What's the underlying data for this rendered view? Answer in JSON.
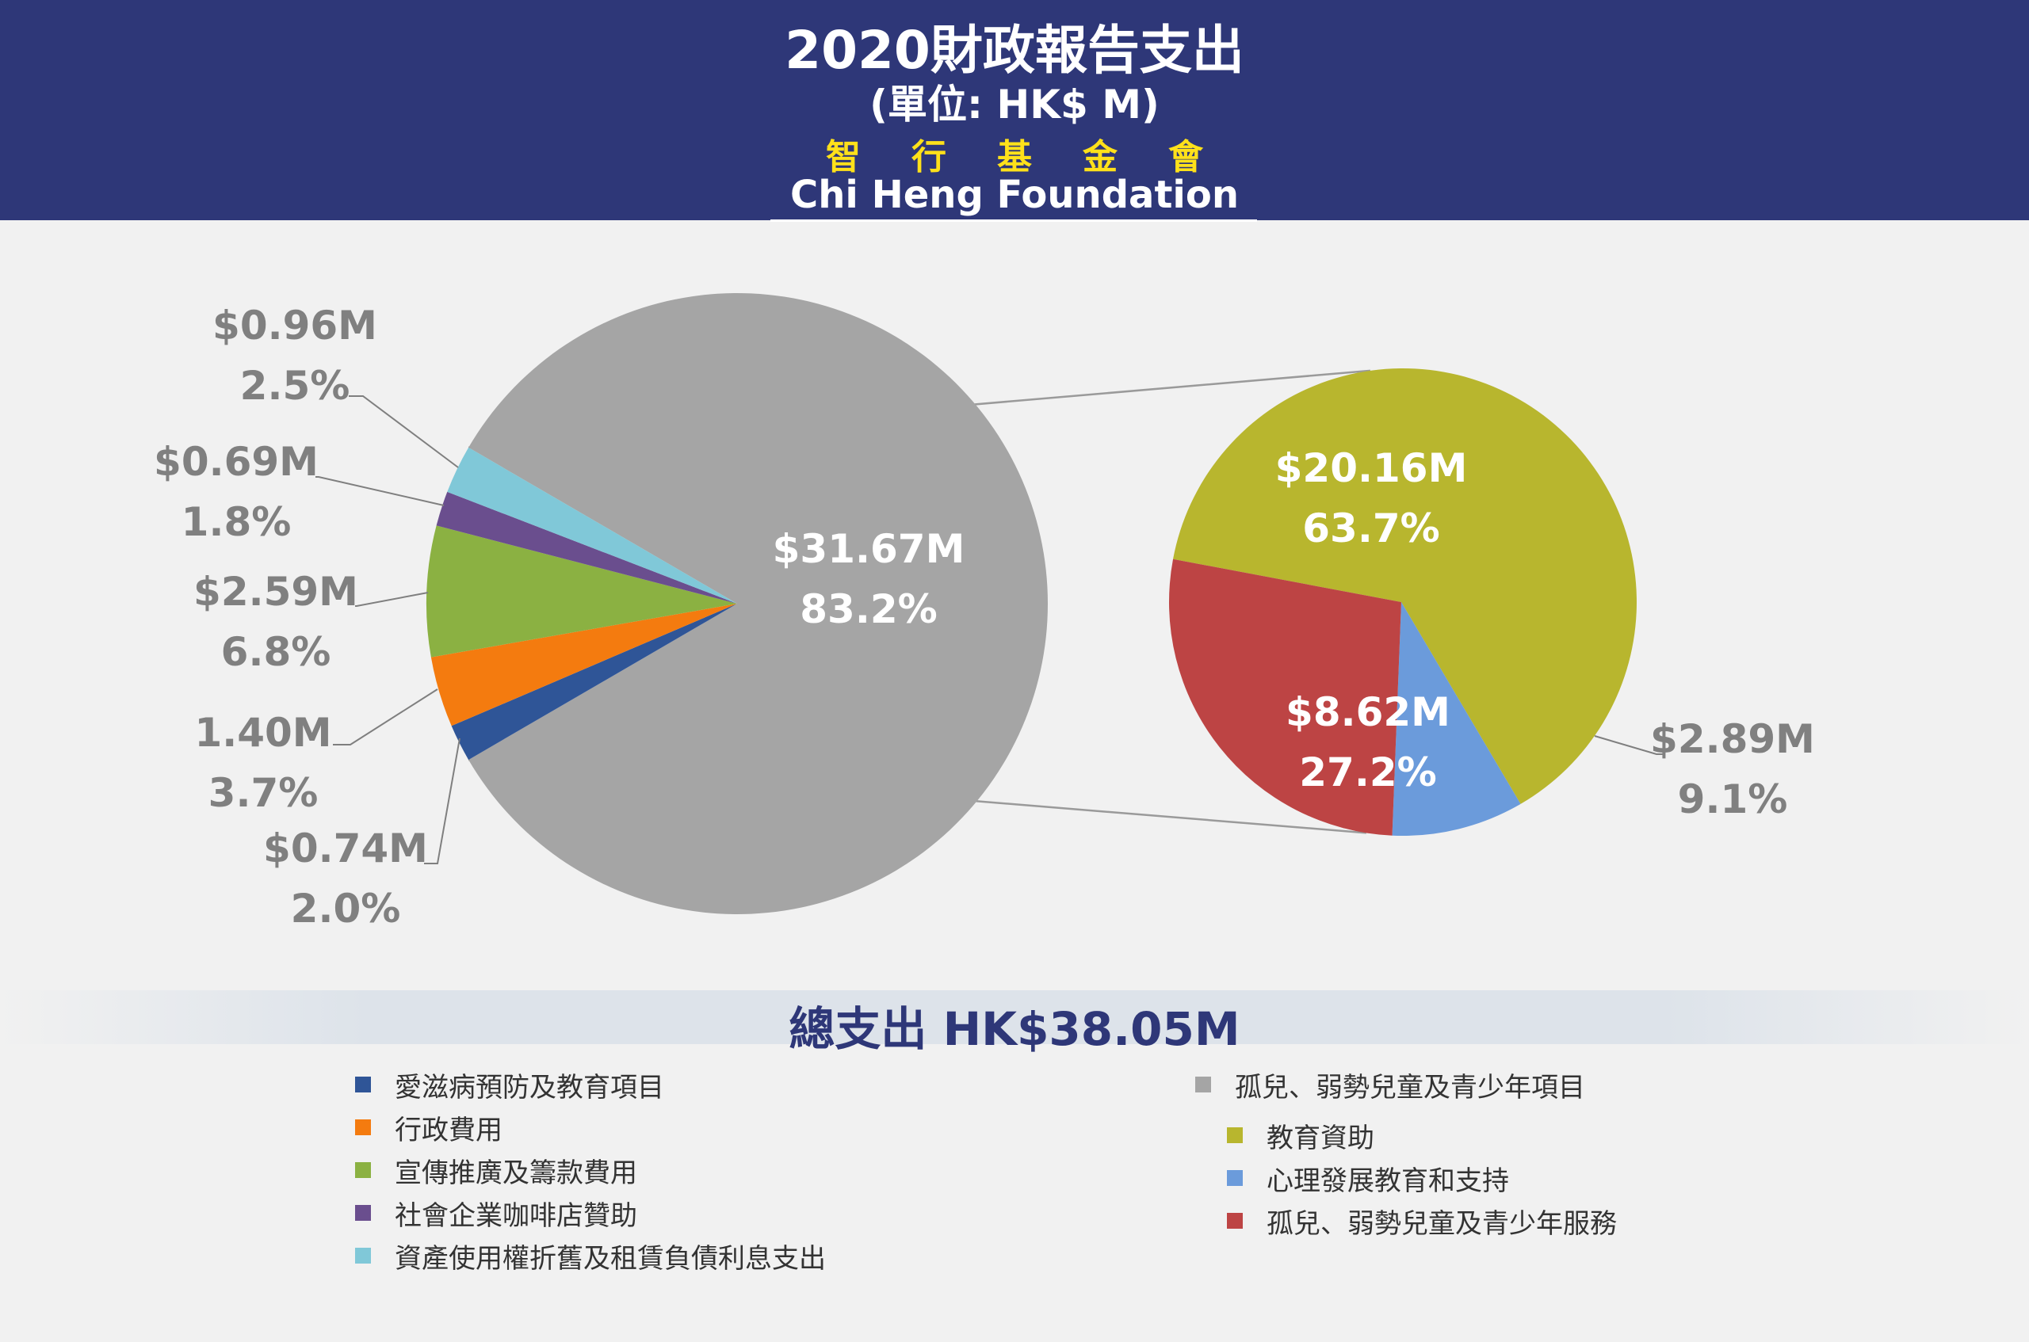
{
  "header": {
    "title": "2020財政報告支出",
    "subtitle": "(單位: HK$ M)",
    "org_zh": "智行基金會",
    "org_en": "Chi Heng Foundation"
  },
  "total": {
    "label": "總支出 HK$38.05M"
  },
  "chart_data": [
    {
      "type": "pie",
      "name": "main",
      "slices": [
        {
          "legend": "孤兒、弱勢兒童及青少年項目",
          "value": 31.67,
          "amount_label": "$31.67M",
          "percent_label": "83.2%",
          "color": "#a5a5a5"
        },
        {
          "legend": "愛滋病預防及教育項目",
          "value": 0.74,
          "amount_label": "$0.74M",
          "percent_label": "2.0%",
          "color": "#2f5597"
        },
        {
          "legend": "行政費用",
          "value": 1.4,
          "amount_label": "1.40M",
          "percent_label": "3.7%",
          "color": "#f47b0f"
        },
        {
          "legend": "宣傳推廣及籌款費用",
          "value": 2.59,
          "amount_label": "$2.59M",
          "percent_label": "6.8%",
          "color": "#8bb142"
        },
        {
          "legend": "社會企業咖啡店贊助",
          "value": 0.69,
          "amount_label": "$0.69M",
          "percent_label": "1.8%",
          "color": "#6a4e8e"
        },
        {
          "legend": "資產使用權折舊及租賃負債利息支出",
          "value": 0.96,
          "amount_label": "$0.96M",
          "percent_label": "2.5%",
          "color": "#80c8d8"
        }
      ]
    },
    {
      "type": "pie",
      "name": "breakdown",
      "slices": [
        {
          "legend": "教育資助",
          "value": 20.16,
          "amount_label": "$20.16M",
          "percent_label": "63.7%",
          "color": "#b8b62e"
        },
        {
          "legend": "心理發展教育和支持",
          "value": 2.89,
          "amount_label": "$2.89M",
          "percent_label": "9.1%",
          "color": "#6b9bdb"
        },
        {
          "legend": "孤兒、弱勢兒童及青少年服務",
          "value": 8.62,
          "amount_label": "$8.62M",
          "percent_label": "27.2%",
          "color": "#bd4444"
        }
      ]
    }
  ],
  "legend": {
    "left": [
      {
        "label": "愛滋病預防及教育項目",
        "color": "#2f5597"
      },
      {
        "label": "行政費用",
        "color": "#f47b0f"
      },
      {
        "label": "宣傳推廣及籌款費用",
        "color": "#8bb142"
      },
      {
        "label": "社會企業咖啡店贊助",
        "color": "#6a4e8e"
      },
      {
        "label": "資產使用權折舊及租賃負債利息支出",
        "color": "#80c8d8"
      }
    ],
    "right": [
      {
        "label": "孤兒、弱勢兒童及青少年項目",
        "color": "#a5a5a5"
      },
      {
        "label": "教育資助",
        "color": "#b8b62e"
      },
      {
        "label": "心理發展教育和支持",
        "color": "#6b9bdb"
      },
      {
        "label": "孤兒、弱勢兒童及青少年服務",
        "color": "#bd4444"
      }
    ]
  }
}
